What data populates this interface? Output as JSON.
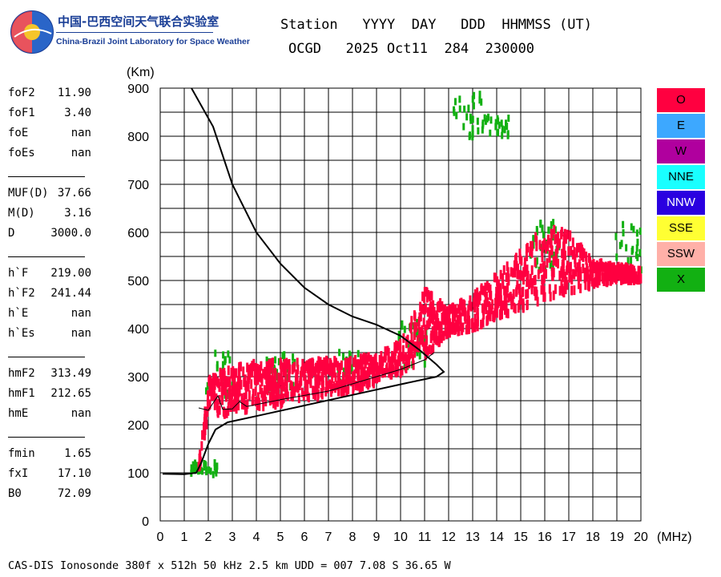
{
  "logo": {
    "cn_text": "中国-巴西空间天气联合实验室",
    "en_text": "China-Brazil Joint Laboratory for Space Weather"
  },
  "header": {
    "line1": "Station   YYYY  DAY   DDD  HHMMSS (UT)",
    "line2": "OCGD   2025 Oct11  284  230000"
  },
  "params": {
    "group1": [
      {
        "key": "foF2",
        "value": "11.90"
      },
      {
        "key": "foF1",
        "value": "3.40"
      },
      {
        "key": "foE",
        "value": "nan"
      },
      {
        "key": "foEs",
        "value": "nan"
      }
    ],
    "group2": [
      {
        "key": "MUF(D)",
        "value": "37.66"
      },
      {
        "key": "M(D)",
        "value": "3.16"
      },
      {
        "key": "D",
        "value": "3000.0"
      }
    ],
    "group3": [
      {
        "key": "h`F",
        "value": "219.00"
      },
      {
        "key": "h`F2",
        "value": "241.44"
      },
      {
        "key": "h`E",
        "value": "nan"
      },
      {
        "key": "h`Es",
        "value": "nan"
      }
    ],
    "group4": [
      {
        "key": "hmF2",
        "value": "313.49"
      },
      {
        "key": "hmF1",
        "value": "212.65"
      },
      {
        "key": "hmE",
        "value": "nan"
      }
    ],
    "group5": [
      {
        "key": "fmin",
        "value": "1.65"
      },
      {
        "key": "fxI",
        "value": "17.10"
      },
      {
        "key": "B0",
        "value": "72.09"
      }
    ]
  },
  "legend": [
    {
      "label": "O",
      "color": "#ff0040"
    },
    {
      "label": "E",
      "color": "#3da8ff"
    },
    {
      "label": "W",
      "color": "#b0009e"
    },
    {
      "label": "NNE",
      "color": "#19ffff"
    },
    {
      "label": "NNW",
      "color": "#2a00e0"
    },
    {
      "label": "SSE",
      "color": "#ffff33"
    },
    {
      "label": "SSW",
      "color": "#ffb0a8"
    },
    {
      "label": "X",
      "color": "#12b012"
    }
  ],
  "footer": "CAS-DIS Ionosonde 380f x 512h 50 kHz 2.5 km UDD = 007 7.08 S 36.65 W",
  "chart_data": {
    "type": "scatter",
    "title": "",
    "xlabel": "(MHz)",
    "ylabel": "(Km)",
    "xlim": [
      0,
      20
    ],
    "ylim": [
      0,
      900
    ],
    "xticks": [
      0,
      1,
      2,
      3,
      4,
      5,
      6,
      7,
      8,
      9,
      10,
      11,
      12,
      13,
      14,
      15,
      16,
      17,
      18,
      19,
      20
    ],
    "yticks": [
      0,
      100,
      200,
      300,
      400,
      500,
      600,
      700,
      800,
      900
    ],
    "grid": true,
    "series": [
      {
        "name": "O-trace (echo band)",
        "color": "#ff0040",
        "band": [
          {
            "f": 1.6,
            "h_lo": 100,
            "h_hi": 125
          },
          {
            "f": 2.0,
            "h_lo": 215,
            "h_hi": 300
          },
          {
            "f": 3.0,
            "h_lo": 225,
            "h_hi": 320
          },
          {
            "f": 4.0,
            "h_lo": 235,
            "h_hi": 330
          },
          {
            "f": 5.0,
            "h_lo": 240,
            "h_hi": 330
          },
          {
            "f": 6.0,
            "h_lo": 250,
            "h_hi": 330
          },
          {
            "f": 7.0,
            "h_lo": 260,
            "h_hi": 335
          },
          {
            "f": 8.0,
            "h_lo": 270,
            "h_hi": 340
          },
          {
            "f": 9.0,
            "h_lo": 285,
            "h_hi": 345
          },
          {
            "f": 10.0,
            "h_lo": 305,
            "h_hi": 370
          },
          {
            "f": 11.0,
            "h_lo": 340,
            "h_hi": 480
          },
          {
            "f": 12.0,
            "h_lo": 390,
            "h_hi": 440
          },
          {
            "f": 13.0,
            "h_lo": 400,
            "h_hi": 470
          },
          {
            "f": 14.0,
            "h_lo": 420,
            "h_hi": 510
          },
          {
            "f": 15.0,
            "h_lo": 440,
            "h_hi": 560
          },
          {
            "f": 16.0,
            "h_lo": 460,
            "h_hi": 610
          },
          {
            "f": 17.0,
            "h_lo": 470,
            "h_hi": 600
          },
          {
            "f": 18.0,
            "h_lo": 490,
            "h_hi": 540
          },
          {
            "f": 19.0,
            "h_lo": 500,
            "h_hi": 530
          },
          {
            "f": 20.0,
            "h_lo": 500,
            "h_hi": 525
          }
        ]
      },
      {
        "name": "X-trace (echo band)",
        "color": "#12b012",
        "band": [
          {
            "f": 1.8,
            "h_lo": 95,
            "h_hi": 120
          },
          {
            "f": 2.5,
            "h_lo": 260,
            "h_hi": 350
          },
          {
            "f": 5.0,
            "h_lo": 270,
            "h_hi": 345
          },
          {
            "f": 8.0,
            "h_lo": 285,
            "h_hi": 350
          },
          {
            "f": 10.5,
            "h_lo": 320,
            "h_hi": 420
          },
          {
            "f": 12.8,
            "h_lo": 790,
            "h_hi": 890
          },
          {
            "f": 14.0,
            "h_lo": 800,
            "h_hi": 840
          },
          {
            "f": 16.0,
            "h_lo": 520,
            "h_hi": 620
          },
          {
            "f": 19.5,
            "h_lo": 520,
            "h_hi": 620
          }
        ]
      },
      {
        "name": "Virtual height profile",
        "color": "#000000",
        "points": [
          [
            0.1,
            98
          ],
          [
            1.0,
            97
          ],
          [
            1.5,
            100
          ],
          [
            1.7,
            120
          ],
          [
            2.0,
            160
          ],
          [
            2.3,
            190
          ],
          [
            2.8,
            205
          ],
          [
            4,
            218
          ],
          [
            6,
            240
          ],
          [
            8,
            262
          ],
          [
            10,
            284
          ],
          [
            11.5,
            300
          ],
          [
            11.8,
            310
          ],
          [
            11.5,
            325
          ],
          [
            10.8,
            355
          ],
          [
            10,
            385
          ],
          [
            9,
            408
          ],
          [
            8,
            425
          ],
          [
            7,
            450
          ],
          [
            6,
            485
          ],
          [
            5,
            535
          ],
          [
            4,
            600
          ],
          [
            3,
            700
          ],
          [
            2.2,
            820
          ],
          [
            1.3,
            900
          ]
        ]
      },
      {
        "name": "Median trace",
        "color": "#000000",
        "points": [
          [
            1.6,
            235
          ],
          [
            2.0,
            230
          ],
          [
            2.4,
            260
          ],
          [
            2.6,
            232
          ],
          [
            3,
            233
          ],
          [
            3.3,
            248
          ],
          [
            3.6,
            238
          ],
          [
            5,
            252
          ],
          [
            7,
            270
          ],
          [
            9,
            300
          ],
          [
            10,
            315
          ],
          [
            10.5,
            325
          ],
          [
            11,
            335
          ],
          [
            11.4,
            350
          ]
        ]
      }
    ]
  }
}
